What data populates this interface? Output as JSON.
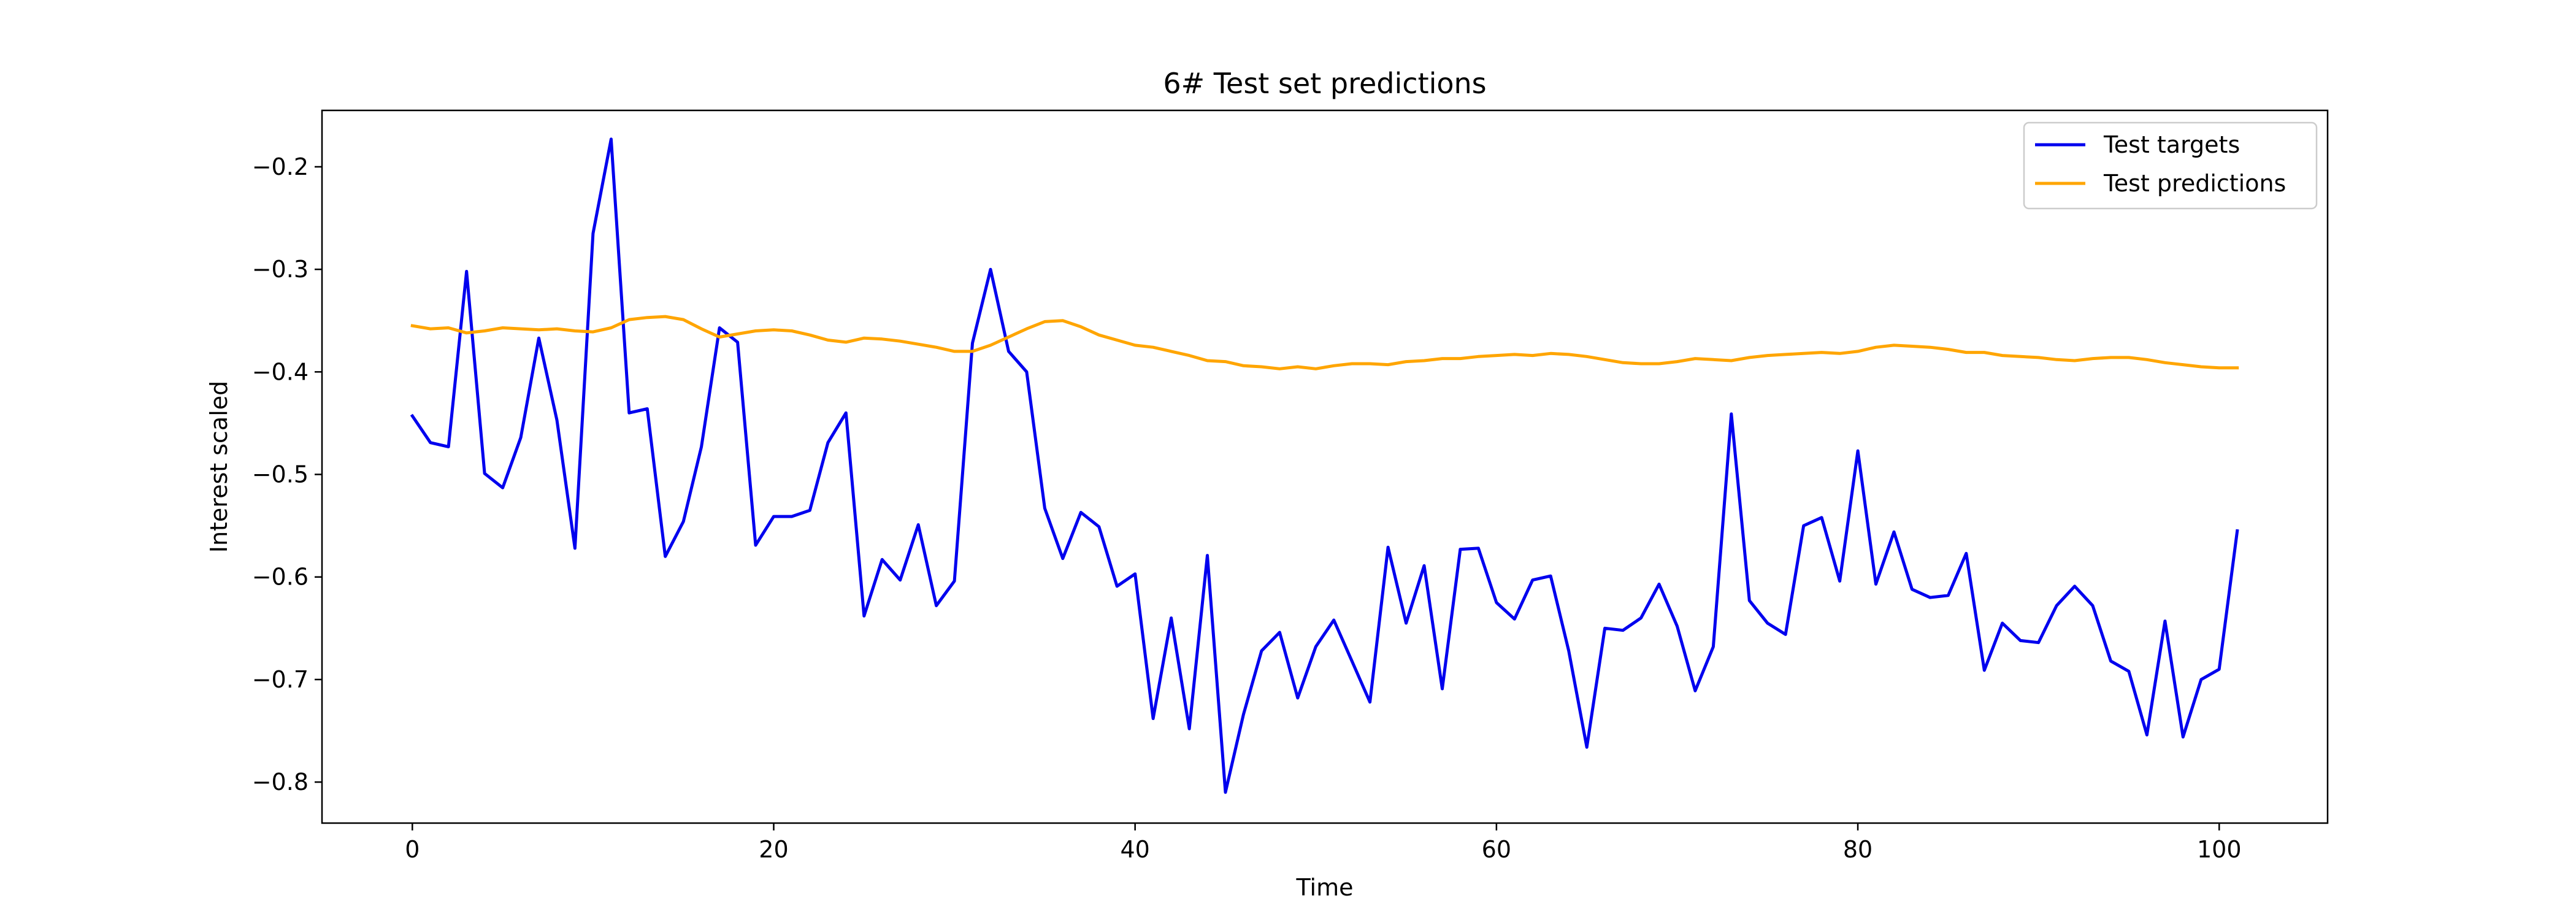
{
  "chart_data": {
    "type": "line",
    "title": "6# Test set predictions",
    "xlabel": "Time",
    "ylabel": "Interest scaled",
    "xlim": [
      -5,
      106
    ],
    "ylim": [
      -0.84,
      -0.145
    ],
    "xticks": [
      0,
      20,
      40,
      60,
      80,
      100
    ],
    "yticks": [
      -0.8,
      -0.7,
      -0.6,
      -0.5,
      -0.4,
      -0.3,
      -0.2
    ],
    "ytick_labels": [
      "−0.8",
      "−0.7",
      "−0.6",
      "−0.5",
      "−0.4",
      "−0.3",
      "−0.2"
    ],
    "grid": false,
    "legend_position": "top-right",
    "series": [
      {
        "name": "Test targets",
        "color": "#0000ee",
        "values": [
          -0.443,
          -0.469,
          -0.473,
          -0.302,
          -0.499,
          -0.513,
          -0.464,
          -0.367,
          -0.447,
          -0.572,
          -0.265,
          -0.173,
          -0.44,
          -0.436,
          -0.58,
          -0.546,
          -0.473,
          -0.357,
          -0.371,
          -0.569,
          -0.541,
          -0.541,
          -0.535,
          -0.469,
          -0.44,
          -0.638,
          -0.583,
          -0.603,
          -0.549,
          -0.628,
          -0.604,
          -0.372,
          -0.3,
          -0.38,
          -0.4,
          -0.533,
          -0.582,
          -0.537,
          -0.551,
          -0.609,
          -0.597,
          -0.738,
          -0.64,
          -0.748,
          -0.579,
          -0.81,
          -0.734,
          -0.672,
          -0.654,
          -0.718,
          -0.668,
          -0.642,
          -0.682,
          -0.722,
          -0.571,
          -0.645,
          -0.589,
          -0.709,
          -0.573,
          -0.572,
          -0.625,
          -0.641,
          -0.603,
          -0.599,
          -0.672,
          -0.766,
          -0.65,
          -0.652,
          -0.64,
          -0.607,
          -0.648,
          -0.711,
          -0.668,
          -0.441,
          -0.623,
          -0.645,
          -0.656,
          -0.55,
          -0.542,
          -0.604,
          -0.477,
          -0.607,
          -0.556,
          -0.612,
          -0.62,
          -0.618,
          -0.577,
          -0.691,
          -0.645,
          -0.662,
          -0.664,
          -0.628,
          -0.609,
          -0.628,
          -0.682,
          -0.692,
          -0.754,
          -0.643,
          -0.756,
          -0.7,
          -0.69,
          -0.555
        ]
      },
      {
        "name": "Test predictions",
        "color": "#ffa500",
        "values": [
          -0.355,
          -0.358,
          -0.357,
          -0.362,
          -0.36,
          -0.357,
          -0.358,
          -0.359,
          -0.358,
          -0.36,
          -0.361,
          -0.357,
          -0.349,
          -0.347,
          -0.346,
          -0.349,
          -0.358,
          -0.366,
          -0.363,
          -0.36,
          -0.359,
          -0.36,
          -0.364,
          -0.369,
          -0.371,
          -0.367,
          -0.368,
          -0.37,
          -0.373,
          -0.376,
          -0.38,
          -0.38,
          -0.374,
          -0.366,
          -0.358,
          -0.351,
          -0.35,
          -0.356,
          -0.364,
          -0.369,
          -0.374,
          -0.376,
          -0.38,
          -0.384,
          -0.389,
          -0.39,
          -0.394,
          -0.395,
          -0.397,
          -0.395,
          -0.397,
          -0.394,
          -0.392,
          -0.392,
          -0.393,
          -0.39,
          -0.389,
          -0.387,
          -0.387,
          -0.385,
          -0.384,
          -0.383,
          -0.384,
          -0.382,
          -0.383,
          -0.385,
          -0.388,
          -0.391,
          -0.392,
          -0.392,
          -0.39,
          -0.387,
          -0.388,
          -0.389,
          -0.386,
          -0.384,
          -0.383,
          -0.382,
          -0.381,
          -0.382,
          -0.38,
          -0.376,
          -0.374,
          -0.375,
          -0.376,
          -0.378,
          -0.381,
          -0.381,
          -0.384,
          -0.385,
          -0.386,
          -0.388,
          -0.389,
          -0.387,
          -0.386,
          -0.386,
          -0.388,
          -0.391,
          -0.393,
          -0.395,
          -0.396,
          -0.396
        ]
      }
    ]
  }
}
